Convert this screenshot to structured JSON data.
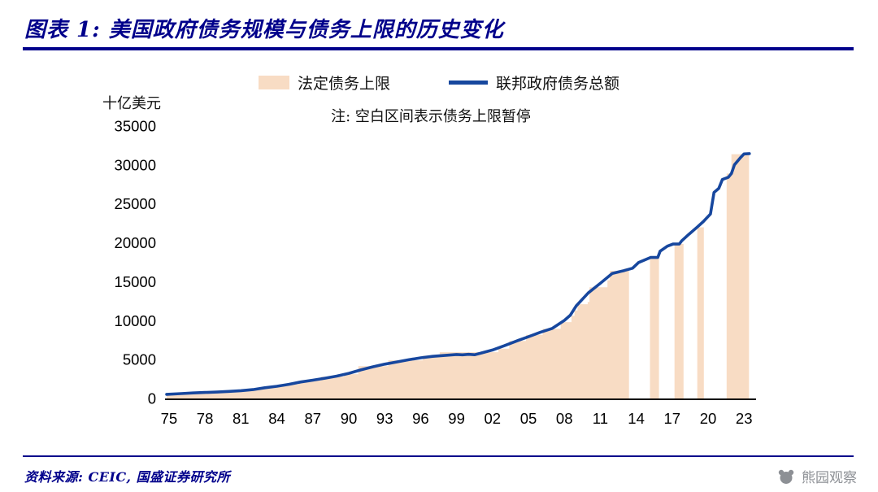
{
  "header": {
    "title": "图表 1:  美国政府债务规模与债务上限的历史变化"
  },
  "legend": {
    "ceiling_label": "法定债务上限",
    "debt_label": "联邦政府债务总额",
    "note": "注: 空白区间表示债务上限暂停"
  },
  "footer": {
    "source": "资料来源: CEIC, 国盛证券研究所",
    "watermark": "熊园观察"
  },
  "colors": {
    "navy": "#00008B",
    "line_blue": "#17479e",
    "area_peach": "#f8dcc4",
    "axis_black": "#000000",
    "watermark_gray": "#8d9095"
  },
  "chart_data": {
    "type": "area+line",
    "title": "美国政府债务规模与债务上限的历史变化",
    "unit_label": "十亿美元",
    "note": "空白区间表示债务上限暂停",
    "ylim": [
      0,
      35000
    ],
    "yticks": [
      0,
      5000,
      10000,
      15000,
      20000,
      25000,
      30000,
      35000
    ],
    "xlim": [
      1974.8,
      2023.6
    ],
    "xtick_years": [
      1975,
      1978,
      1981,
      1984,
      1987,
      1990,
      1993,
      1996,
      1999,
      2002,
      2005,
      2008,
      2011,
      2014,
      2017,
      2020,
      2023
    ],
    "xtick_labels": [
      "75",
      "78",
      "81",
      "84",
      "87",
      "90",
      "93",
      "96",
      "99",
      "02",
      "05",
      "08",
      "11",
      "14",
      "17",
      "20",
      "23"
    ],
    "grid": false,
    "legend_position": "top-center",
    "series": [
      {
        "name": "法定债务上限",
        "type": "step-area",
        "color": "#f8dcc4",
        "gaps_meaning": "债务上限暂停",
        "segments": [
          {
            "end": 2013.4,
            "steps": [
              [
                1974.8,
                577
              ],
              [
                1976,
                682
              ],
              [
                1977,
                752
              ],
              [
                1978,
                798
              ],
              [
                1979,
                879
              ],
              [
                1980,
                925
              ],
              [
                1981,
                1080
              ],
              [
                1982,
                1290
              ],
              [
                1983.4,
                1490
              ],
              [
                1984.4,
                1823
              ],
              [
                1985.8,
                2079
              ],
              [
                1986.6,
                2300
              ],
              [
                1987.7,
                2800
              ],
              [
                1989.6,
                3122
              ],
              [
                1990.8,
                4145
              ],
              [
                1993.3,
                4900
              ],
              [
                1996.2,
                5500
              ],
              [
                1997.6,
                5950
              ],
              [
                2002.5,
                6400
              ],
              [
                2003.4,
                7384
              ],
              [
                2004.8,
                8184
              ],
              [
                2006.2,
                8965
              ],
              [
                2007.7,
                9815
              ],
              [
                2008.6,
                10615
              ],
              [
                2008.85,
                11315
              ],
              [
                2009.1,
                12104
              ],
              [
                2009.95,
                12394
              ],
              [
                2010.1,
                14294
              ],
              [
                2011.6,
                15194
              ],
              [
                2011.8,
                16394
              ],
              [
                2013.0,
                16699
              ]
            ]
          },
          {
            "end": 2015.9,
            "steps": [
              [
                2015.15,
                18113
              ]
            ]
          },
          {
            "end": 2017.95,
            "steps": [
              [
                2017.2,
                19847
              ]
            ]
          },
          {
            "end": 2019.65,
            "steps": [
              [
                2019.1,
                21988
              ]
            ]
          },
          {
            "end": 2023.42,
            "steps": [
              [
                2021.55,
                28900
              ],
              [
                2021.95,
                31381
              ]
            ]
          }
        ]
      },
      {
        "name": "联邦政府债务总额",
        "type": "line",
        "color": "#17479e",
        "points": [
          [
            1974.8,
            533
          ],
          [
            1976,
            629
          ],
          [
            1977,
            706
          ],
          [
            1978,
            772
          ],
          [
            1979,
            827
          ],
          [
            1980,
            908
          ],
          [
            1981,
            998
          ],
          [
            1982,
            1142
          ],
          [
            1983,
            1377
          ],
          [
            1984,
            1572
          ],
          [
            1985,
            1823
          ],
          [
            1986,
            2125
          ],
          [
            1987,
            2346
          ],
          [
            1988,
            2601
          ],
          [
            1989,
            2868
          ],
          [
            1990,
            3233
          ],
          [
            1991,
            3665
          ],
          [
            1992,
            4065
          ],
          [
            1993,
            4411
          ],
          [
            1994,
            4693
          ],
          [
            1995,
            4974
          ],
          [
            1996,
            5225
          ],
          [
            1997,
            5413
          ],
          [
            1998,
            5526
          ],
          [
            1999,
            5656
          ],
          [
            1999.5,
            5606
          ],
          [
            2000,
            5674
          ],
          [
            2000.5,
            5622
          ],
          [
            2001,
            5807
          ],
          [
            2002,
            6228
          ],
          [
            2003,
            6783
          ],
          [
            2004,
            7379
          ],
          [
            2005,
            7933
          ],
          [
            2006,
            8507
          ],
          [
            2007,
            9008
          ],
          [
            2008,
            10025
          ],
          [
            2008.5,
            10700
          ],
          [
            2009,
            11910
          ],
          [
            2010,
            13562
          ],
          [
            2011,
            14790
          ],
          [
            2012,
            16066
          ],
          [
            2013,
            16432
          ],
          [
            2013.7,
            16738
          ],
          [
            2014.2,
            17472
          ],
          [
            2015.2,
            18113
          ],
          [
            2015.8,
            18113
          ],
          [
            2016,
            18922
          ],
          [
            2016.6,
            19570
          ],
          [
            2017.1,
            19846
          ],
          [
            2017.6,
            19844
          ],
          [
            2017.8,
            20245
          ],
          [
            2018.4,
            21090
          ],
          [
            2019.1,
            22028
          ],
          [
            2019.6,
            22719
          ],
          [
            2020.2,
            23700
          ],
          [
            2020.5,
            26477
          ],
          [
            2020.9,
            27000
          ],
          [
            2021.2,
            28133
          ],
          [
            2021.7,
            28429
          ],
          [
            2021.95,
            28900
          ],
          [
            2022.2,
            30012
          ],
          [
            2022.7,
            30928
          ],
          [
            2023.0,
            31420
          ],
          [
            2023.45,
            31458
          ]
        ]
      }
    ]
  }
}
